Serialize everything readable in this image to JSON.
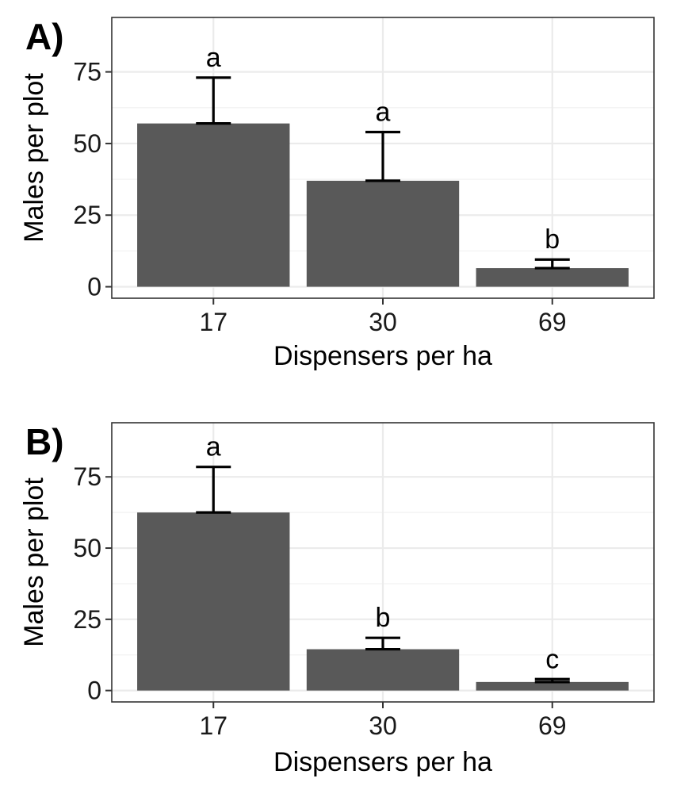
{
  "chart_data": [
    {
      "type": "bar",
      "panel_label": "A)",
      "categories": [
        "17",
        "30",
        "69"
      ],
      "values": [
        57,
        37,
        6.5
      ],
      "error_upper": [
        73,
        54,
        9.5
      ],
      "significance_labels": [
        "a",
        "a",
        "b"
      ],
      "xlabel": "Dispensers per ha",
      "ylabel": "Males per plot",
      "yticks": [
        0,
        25,
        50,
        75
      ],
      "ylim": [
        -4,
        94
      ],
      "grid": true
    },
    {
      "type": "bar",
      "panel_label": "B)",
      "categories": [
        "17",
        "30",
        "69"
      ],
      "values": [
        62.5,
        14.5,
        3
      ],
      "error_upper": [
        78.5,
        18.5,
        4
      ],
      "significance_labels": [
        "a",
        "b",
        "c"
      ],
      "xlabel": "Dispensers per ha",
      "ylabel": "Males per plot",
      "yticks": [
        0,
        25,
        50,
        75
      ],
      "ylim": [
        -4,
        94
      ],
      "grid": true
    }
  ],
  "colors": {
    "bar": "#595959",
    "grid_major": "#ebebeb",
    "panel_border": "#333333",
    "background": "#ffffff"
  }
}
